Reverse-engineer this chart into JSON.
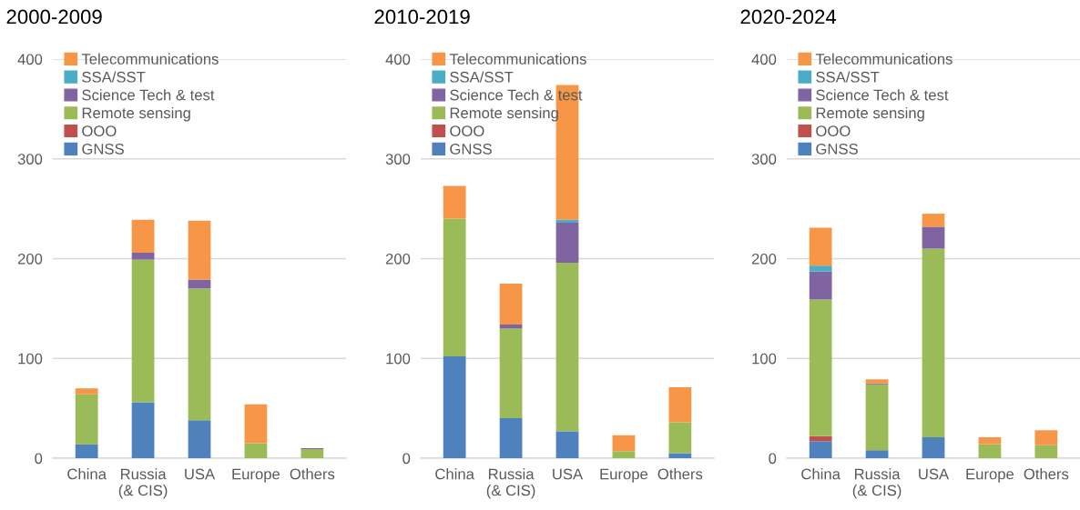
{
  "chart_data": [
    {
      "type": "bar",
      "title": "2000-2009",
      "stacked": true,
      "categories": [
        "China",
        "Russia\n(& CIS)",
        "USA",
        "Europe",
        "Others"
      ],
      "ylim": [
        0,
        400
      ],
      "yticks": [
        0,
        100,
        200,
        300,
        400
      ],
      "grid": "y",
      "legend": "top left",
      "series": [
        {
          "name": "GNSS",
          "color": "#4f81bd",
          "values": [
            14,
            56,
            38,
            0,
            0
          ]
        },
        {
          "name": "OOO",
          "color": "#c0504d",
          "values": [
            0,
            0,
            0,
            0,
            0
          ]
        },
        {
          "name": "Remote sensing",
          "color": "#9bbb59",
          "values": [
            50,
            143,
            132,
            15,
            9
          ]
        },
        {
          "name": "Science Tech & test",
          "color": "#8064a2",
          "values": [
            0,
            7,
            9,
            0,
            1
          ]
        },
        {
          "name": "SSA/SST",
          "color": "#4bacc6",
          "values": [
            0,
            0,
            0,
            0,
            0
          ]
        },
        {
          "name": "Telecommunications",
          "color": "#f79646",
          "values": [
            6,
            33,
            59,
            39,
            0
          ]
        }
      ]
    },
    {
      "type": "bar",
      "title": "2010-2019",
      "stacked": true,
      "categories": [
        "China",
        "Russia\n(& CIS)",
        "USA",
        "Europe",
        "Others"
      ],
      "ylim": [
        0,
        400
      ],
      "yticks": [
        0,
        100,
        200,
        300,
        400
      ],
      "grid": "y",
      "legend": "top left",
      "series": [
        {
          "name": "GNSS",
          "color": "#4f81bd",
          "values": [
            102,
            40,
            27,
            0,
            5
          ]
        },
        {
          "name": "OOO",
          "color": "#c0504d",
          "values": [
            0,
            0,
            0,
            0,
            0
          ]
        },
        {
          "name": "Remote sensing",
          "color": "#9bbb59",
          "values": [
            138,
            90,
            169,
            7,
            31
          ]
        },
        {
          "name": "Science Tech & test",
          "color": "#8064a2",
          "values": [
            0,
            4,
            40,
            0,
            0
          ]
        },
        {
          "name": "SSA/SST",
          "color": "#4bacc6",
          "values": [
            0,
            0,
            3,
            0,
            0
          ]
        },
        {
          "name": "Telecommunications",
          "color": "#f79646",
          "values": [
            33,
            41,
            135,
            16,
            35
          ]
        }
      ]
    },
    {
      "type": "bar",
      "title": "2020-2024",
      "stacked": true,
      "categories": [
        "China",
        "Russia\n(& CIS)",
        "USA",
        "Europe",
        "Others"
      ],
      "ylim": [
        0,
        400
      ],
      "yticks": [
        0,
        100,
        200,
        300,
        400
      ],
      "grid": "y",
      "legend": "top left",
      "series": [
        {
          "name": "GNSS",
          "color": "#4f81bd",
          "values": [
            17,
            8,
            21,
            0,
            0
          ]
        },
        {
          "name": "OOO",
          "color": "#c0504d",
          "values": [
            5,
            0,
            0,
            0,
            0
          ]
        },
        {
          "name": "Remote sensing",
          "color": "#9bbb59",
          "values": [
            137,
            66,
            189,
            14,
            13
          ]
        },
        {
          "name": "Science Tech & test",
          "color": "#8064a2",
          "values": [
            28,
            1,
            22,
            0,
            0
          ]
        },
        {
          "name": "SSA/SST",
          "color": "#4bacc6",
          "values": [
            6,
            0,
            0,
            0,
            0
          ]
        },
        {
          "name": "Telecommunications",
          "color": "#f79646",
          "values": [
            38,
            4,
            13,
            7,
            15
          ]
        }
      ]
    }
  ]
}
